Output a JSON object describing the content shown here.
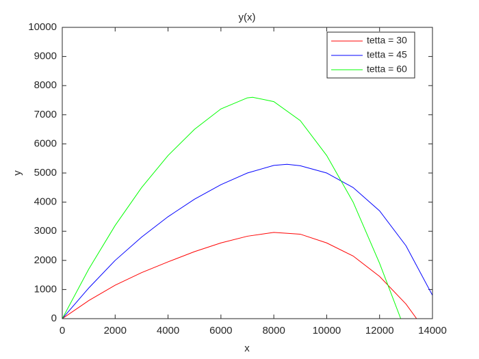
{
  "chart_data": {
    "type": "line",
    "title": "y(x)",
    "x_label": "x",
    "y_label": "y",
    "xlim": [
      0,
      14000
    ],
    "ylim": [
      0,
      10000
    ],
    "xticks": [
      0,
      2000,
      4000,
      6000,
      8000,
      10000,
      12000,
      14000
    ],
    "yticks": [
      0,
      1000,
      2000,
      3000,
      4000,
      5000,
      6000,
      7000,
      8000,
      9000,
      10000
    ],
    "grid": false,
    "legend": "upper right",
    "series": [
      {
        "name": "tetta = 30",
        "color": "#ff0000",
        "x": [
          0,
          1000,
          2000,
          3000,
          4000,
          5000,
          6000,
          7000,
          8000,
          9000,
          10000,
          11000,
          12000,
          13000,
          13400
        ],
        "values": [
          0,
          620,
          1150,
          1580,
          1950,
          2300,
          2600,
          2830,
          2960,
          2900,
          2600,
          2150,
          1450,
          500,
          0
        ]
      },
      {
        "name": "tetta = 45",
        "color": "#0000ff",
        "x": [
          0,
          1000,
          2000,
          3000,
          4000,
          5000,
          6000,
          7000,
          8000,
          8500,
          9000,
          10000,
          11000,
          12000,
          13000,
          14000
        ],
        "values": [
          0,
          1050,
          2000,
          2800,
          3500,
          4100,
          4600,
          5000,
          5260,
          5300,
          5250,
          5000,
          4500,
          3700,
          2500,
          800
        ]
      },
      {
        "name": "tetta = 60",
        "color": "#00ff00",
        "x": [
          0,
          1000,
          2000,
          3000,
          4000,
          5000,
          6000,
          7000,
          7200,
          8000,
          9000,
          10000,
          11000,
          12000,
          12800
        ],
        "values": [
          0,
          1700,
          3200,
          4500,
          5600,
          6500,
          7200,
          7580,
          7600,
          7450,
          6800,
          5600,
          4000,
          1900,
          0
        ]
      }
    ]
  }
}
